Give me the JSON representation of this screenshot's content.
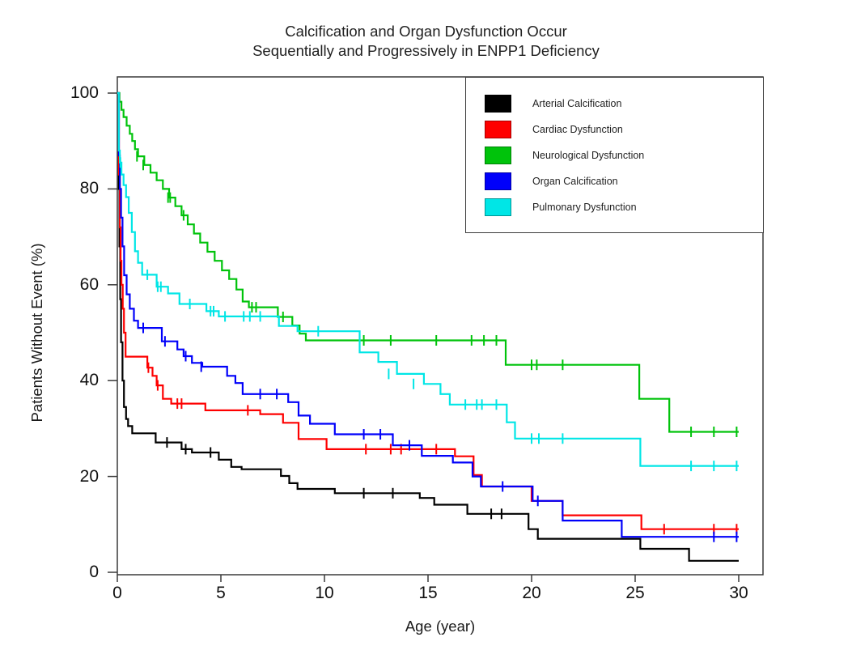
{
  "chart_data": {
    "type": "line",
    "subtype": "kaplan-meier-step-survival",
    "title": "Calcification and Organ Dysfunction Occur Sequentially and Progressively in ENPP1 Deficiency",
    "title_line1": "Calcification and Organ Dysfunction Occur",
    "title_line2": "Sequentially and Progressively in ENPP1 Deficiency",
    "xlabel": "Age (year)",
    "ylabel": "Patients Without Event (%)",
    "xlim": [
      0,
      30
    ],
    "ylim": [
      0,
      100
    ],
    "x_ticks": [
      0,
      5,
      10,
      15,
      20,
      25,
      30
    ],
    "y_ticks": [
      0,
      20,
      40,
      60,
      80,
      100
    ],
    "grid": false,
    "legend_position": "top-right-inside",
    "censor_mark": "vertical-dash",
    "series": [
      {
        "name": "Arterial Calcification",
        "color": "#000000",
        "points": [
          [
            0,
            100
          ],
          [
            0.07,
            80
          ],
          [
            0.1,
            68
          ],
          [
            0.14,
            57
          ],
          [
            0.18,
            48
          ],
          [
            0.25,
            40
          ],
          [
            0.32,
            34.5
          ],
          [
            0.42,
            32
          ],
          [
            0.52,
            30.5
          ],
          [
            0.72,
            29
          ],
          [
            1.85,
            27.1
          ],
          [
            3.1,
            25.7
          ],
          [
            3.6,
            25
          ],
          [
            4.9,
            23.5
          ],
          [
            5.5,
            22
          ],
          [
            6.0,
            21.5
          ],
          [
            7.9,
            20.1
          ],
          [
            8.3,
            18.6
          ],
          [
            8.7,
            17.4
          ],
          [
            10.5,
            16.5
          ],
          [
            14.6,
            15.5
          ],
          [
            15.3,
            14.1
          ],
          [
            16.9,
            12.2
          ],
          [
            19.85,
            9
          ],
          [
            20.3,
            7
          ],
          [
            25.25,
            4.9
          ],
          [
            27.6,
            2.4
          ],
          [
            30,
            2.4
          ]
        ],
        "censor_ticks": [
          [
            2.4,
            27.1
          ],
          [
            3.3,
            25.7
          ],
          [
            4.5,
            25
          ],
          [
            11.9,
            16.5
          ],
          [
            13.3,
            16.5
          ],
          [
            18.05,
            12.2
          ],
          [
            18.55,
            12.2
          ]
        ]
      },
      {
        "name": "Cardiac Dysfunction",
        "color": "#fe0000",
        "points": [
          [
            0,
            100
          ],
          [
            0.08,
            83
          ],
          [
            0.12,
            72
          ],
          [
            0.16,
            65
          ],
          [
            0.2,
            60
          ],
          [
            0.26,
            55
          ],
          [
            0.32,
            50
          ],
          [
            0.4,
            45
          ],
          [
            1.45,
            42.7
          ],
          [
            1.7,
            41
          ],
          [
            1.9,
            39
          ],
          [
            2.2,
            36.2
          ],
          [
            2.6,
            35.2
          ],
          [
            4.25,
            33.8
          ],
          [
            6.9,
            33
          ],
          [
            8.0,
            31.2
          ],
          [
            8.75,
            27.8
          ],
          [
            10.1,
            25.7
          ],
          [
            16.3,
            24.2
          ],
          [
            17.2,
            20.3
          ],
          [
            17.6,
            17.9
          ],
          [
            20.0,
            14.9
          ],
          [
            21.5,
            11.9
          ],
          [
            25.3,
            9
          ],
          [
            30,
            9
          ]
        ],
        "censor_ticks": [
          [
            1.5,
            42.7
          ],
          [
            1.95,
            39
          ],
          [
            2.9,
            35.2
          ],
          [
            3.1,
            35.2
          ],
          [
            6.3,
            33.8
          ],
          [
            12.0,
            25.7
          ],
          [
            13.2,
            25.7
          ],
          [
            13.7,
            25.7
          ],
          [
            15.4,
            25.7
          ],
          [
            26.4,
            9
          ],
          [
            28.8,
            9
          ],
          [
            29.9,
            9
          ]
        ]
      },
      {
        "name": "Neurological Dysfunction",
        "color": "#00c30b",
        "points": [
          [
            0,
            100
          ],
          [
            0.1,
            98.2
          ],
          [
            0.2,
            96.5
          ],
          [
            0.3,
            95
          ],
          [
            0.45,
            93.2
          ],
          [
            0.6,
            91.5
          ],
          [
            0.72,
            90
          ],
          [
            0.85,
            88.3
          ],
          [
            1.0,
            86.8
          ],
          [
            1.3,
            85
          ],
          [
            1.6,
            83.4
          ],
          [
            1.9,
            81.8
          ],
          [
            2.2,
            80
          ],
          [
            2.5,
            78.2
          ],
          [
            2.8,
            76.4
          ],
          [
            3.1,
            74.5
          ],
          [
            3.4,
            72.6
          ],
          [
            3.7,
            70.7
          ],
          [
            4.0,
            68.8
          ],
          [
            4.35,
            66.9
          ],
          [
            4.7,
            65
          ],
          [
            5.05,
            63
          ],
          [
            5.4,
            61.2
          ],
          [
            5.75,
            59
          ],
          [
            6.05,
            56.5
          ],
          [
            6.35,
            55.3
          ],
          [
            7.75,
            53.3
          ],
          [
            8.45,
            51.5
          ],
          [
            8.8,
            49.8
          ],
          [
            9.1,
            48.4
          ],
          [
            18.75,
            43.3
          ],
          [
            25.2,
            36.2
          ],
          [
            26.65,
            29.3
          ],
          [
            30,
            29.3
          ]
        ],
        "censor_ticks": [
          [
            0.95,
            86.8
          ],
          [
            1.25,
            85
          ],
          [
            2.45,
            78.2
          ],
          [
            2.55,
            78.2
          ],
          [
            3.2,
            74.5
          ],
          [
            6.5,
            55.3
          ],
          [
            6.7,
            55.3
          ],
          [
            8.0,
            53.3
          ],
          [
            11.9,
            48.4
          ],
          [
            13.2,
            48.4
          ],
          [
            15.4,
            48.4
          ],
          [
            17.1,
            48.4
          ],
          [
            17.7,
            48.4
          ],
          [
            18.3,
            48.4
          ],
          [
            20.0,
            43.3
          ],
          [
            20.25,
            43.3
          ],
          [
            21.5,
            43.3
          ],
          [
            27.7,
            29.3
          ],
          [
            28.8,
            29.3
          ],
          [
            29.9,
            29.3
          ]
        ]
      },
      {
        "name": "Organ Calcification",
        "color": "#0000fa",
        "points": [
          [
            0,
            100
          ],
          [
            0.08,
            87
          ],
          [
            0.12,
            80
          ],
          [
            0.18,
            74
          ],
          [
            0.25,
            68
          ],
          [
            0.33,
            62
          ],
          [
            0.45,
            58
          ],
          [
            0.6,
            55
          ],
          [
            0.8,
            52.5
          ],
          [
            1.0,
            51
          ],
          [
            2.15,
            48.2
          ],
          [
            2.9,
            46.5
          ],
          [
            3.2,
            45.1
          ],
          [
            3.6,
            43.7
          ],
          [
            4.1,
            42.9
          ],
          [
            5.3,
            41
          ],
          [
            5.7,
            39.5
          ],
          [
            6.05,
            37.2
          ],
          [
            8.25,
            35.5
          ],
          [
            8.75,
            32.7
          ],
          [
            9.3,
            31
          ],
          [
            10.5,
            28.8
          ],
          [
            13.3,
            26.5
          ],
          [
            14.7,
            24.3
          ],
          [
            16.2,
            22.9
          ],
          [
            17.15,
            20
          ],
          [
            17.55,
            17.9
          ],
          [
            20.05,
            14.9
          ],
          [
            21.5,
            10.8
          ],
          [
            24.35,
            7.4
          ],
          [
            30,
            7.4
          ]
        ],
        "censor_ticks": [
          [
            1.25,
            51
          ],
          [
            2.3,
            48.2
          ],
          [
            3.3,
            45.1
          ],
          [
            4.05,
            42.9
          ],
          [
            6.9,
            37.2
          ],
          [
            7.7,
            37.2
          ],
          [
            11.9,
            28.8
          ],
          [
            12.7,
            28.8
          ],
          [
            14.1,
            26.5
          ],
          [
            18.6,
            17.9
          ],
          [
            20.3,
            14.9
          ],
          [
            28.8,
            7.4
          ],
          [
            29.9,
            7.4
          ]
        ]
      },
      {
        "name": "Pulmonary Dysfunction",
        "color": "#00e6e6",
        "points": [
          [
            0,
            100
          ],
          [
            0.07,
            88
          ],
          [
            0.12,
            85.5
          ],
          [
            0.2,
            83
          ],
          [
            0.3,
            80.8
          ],
          [
            0.42,
            78.3
          ],
          [
            0.55,
            75
          ],
          [
            0.7,
            71
          ],
          [
            0.85,
            67
          ],
          [
            1.0,
            64.6
          ],
          [
            1.2,
            62.1
          ],
          [
            1.9,
            59.6
          ],
          [
            2.45,
            58.2
          ],
          [
            3.0,
            56
          ],
          [
            4.3,
            54.5
          ],
          [
            4.9,
            53.4
          ],
          [
            7.8,
            51.4
          ],
          [
            8.7,
            50.3
          ],
          [
            11.7,
            45.9
          ],
          [
            12.6,
            43.9
          ],
          [
            13.5,
            41.4
          ],
          [
            14.8,
            39.3
          ],
          [
            15.6,
            37.2
          ],
          [
            16.05,
            35
          ],
          [
            18.8,
            31.3
          ],
          [
            19.2,
            27.9
          ],
          [
            25.25,
            22.2
          ],
          [
            30,
            22.2
          ]
        ],
        "censor_ticks": [
          [
            0.15,
            85.5
          ],
          [
            1.45,
            62.1
          ],
          [
            1.95,
            59.6
          ],
          [
            2.1,
            59.6
          ],
          [
            3.5,
            56
          ],
          [
            4.5,
            54.5
          ],
          [
            4.65,
            54.5
          ],
          [
            5.2,
            53.4
          ],
          [
            6.1,
            53.4
          ],
          [
            6.4,
            53.4
          ],
          [
            6.9,
            53.4
          ],
          [
            9.7,
            50.3
          ],
          [
            13.1,
            41.4
          ],
          [
            14.3,
            39.3
          ],
          [
            16.8,
            35
          ],
          [
            17.35,
            35
          ],
          [
            17.6,
            35
          ],
          [
            18.3,
            35
          ],
          [
            20.0,
            27.9
          ],
          [
            20.35,
            27.9
          ],
          [
            21.5,
            27.9
          ],
          [
            27.7,
            22.2
          ],
          [
            28.8,
            22.2
          ],
          [
            29.9,
            22.2
          ]
        ]
      }
    ]
  }
}
